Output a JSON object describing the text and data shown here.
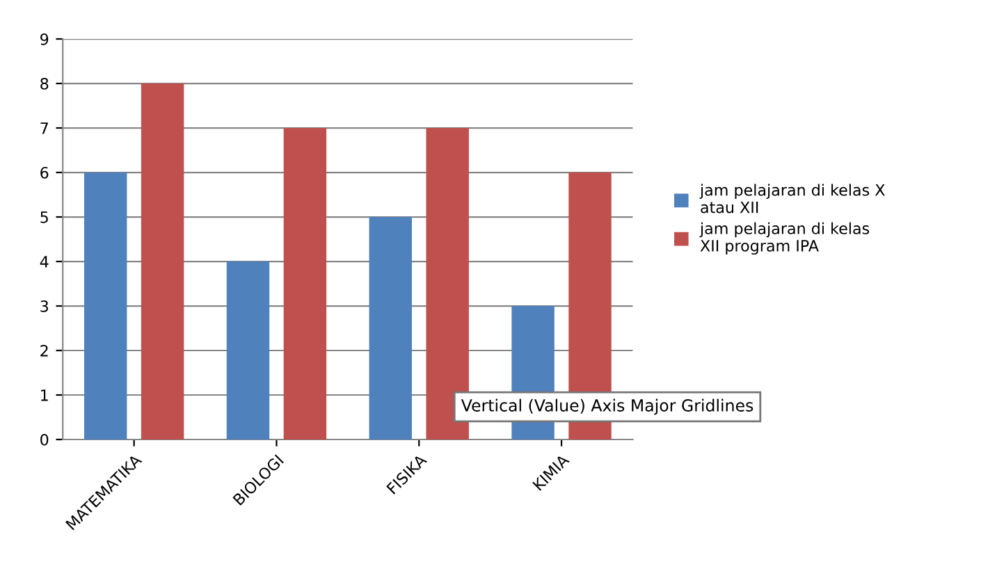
{
  "chart_data": {
    "type": "bar",
    "categories": [
      "MATEMATIKA",
      "BIOLOGI",
      "FISIKA",
      "KIMIA"
    ],
    "series": [
      {
        "name": "jam pelajaran di kelas X atau XII",
        "color": "#4f81bd",
        "values": [
          6,
          4,
          5,
          3
        ]
      },
      {
        "name": "jam pelajaran di kelas XII program IPA",
        "color": "#c0504d",
        "values": [
          8,
          7,
          7,
          6
        ]
      }
    ],
    "ylim": [
      0,
      9
    ],
    "yticks": [
      0,
      1,
      2,
      3,
      4,
      5,
      6,
      7,
      8,
      9
    ],
    "grid": "y",
    "legend": "right",
    "annotations": [
      "Vertical (Value) Axis Major Gridlines"
    ]
  }
}
